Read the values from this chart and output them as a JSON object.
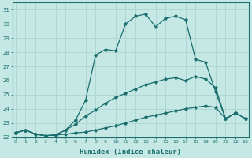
{
  "xlabel": "Humidex (Indice chaleur)",
  "bg_color": "#c5e8e5",
  "line_color": "#1a6e6e",
  "grid_color": "#a8d0ce",
  "xlim": [
    -0.3,
    23.3
  ],
  "ylim": [
    22.0,
    31.5
  ],
  "xticks": [
    0,
    1,
    2,
    3,
    4,
    5,
    6,
    7,
    8,
    9,
    10,
    11,
    12,
    13,
    14,
    15,
    16,
    17,
    18,
    19,
    20,
    21,
    22,
    23
  ],
  "yticks": [
    22,
    23,
    24,
    25,
    26,
    27,
    28,
    29,
    30,
    31
  ],
  "line1_x": [
    0,
    1,
    2,
    3,
    4,
    5,
    6,
    7,
    8,
    9,
    10,
    11,
    12,
    13,
    14,
    15,
    16,
    17,
    18,
    19,
    20,
    21,
    22,
    23
  ],
  "line1_y": [
    22.3,
    22.5,
    22.2,
    22.1,
    22.15,
    22.2,
    22.3,
    22.35,
    22.5,
    22.65,
    22.8,
    23.0,
    23.2,
    23.4,
    23.55,
    23.7,
    23.85,
    24.0,
    24.1,
    24.2,
    24.1,
    23.3,
    23.7,
    23.3
  ],
  "line2_x": [
    0,
    1,
    2,
    3,
    4,
    5,
    6,
    7,
    8,
    9,
    10,
    11,
    12,
    13,
    14,
    15,
    16,
    17,
    18,
    19,
    20,
    21,
    22,
    23
  ],
  "line2_y": [
    22.3,
    22.5,
    22.2,
    22.1,
    22.15,
    22.5,
    22.9,
    23.5,
    23.9,
    24.4,
    24.8,
    25.1,
    25.4,
    25.7,
    25.9,
    26.1,
    26.2,
    26.0,
    26.3,
    26.1,
    25.5,
    23.3,
    23.7,
    23.3
  ],
  "line3_x": [
    0,
    1,
    2,
    3,
    4,
    5,
    6,
    7,
    8,
    9,
    10,
    11,
    12,
    13,
    14,
    15,
    16,
    17,
    18,
    19,
    20,
    21,
    22,
    23
  ],
  "line3_y": [
    22.3,
    22.5,
    22.2,
    22.1,
    22.15,
    22.5,
    23.2,
    24.6,
    27.8,
    28.2,
    28.1,
    30.0,
    30.55,
    30.7,
    29.8,
    30.4,
    30.55,
    30.3,
    27.5,
    27.3,
    25.2,
    23.3,
    23.7,
    23.3
  ]
}
